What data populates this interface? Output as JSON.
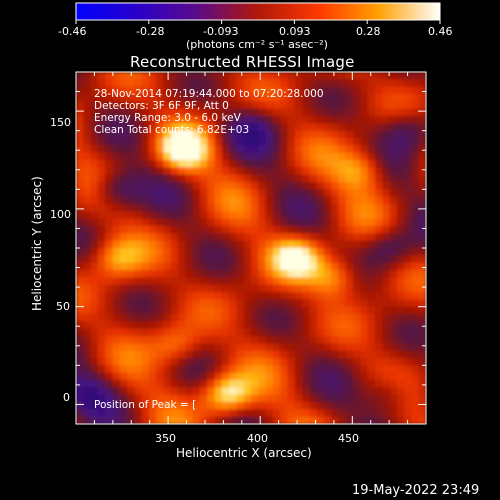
{
  "chart_data": {
    "type": "heatmap",
    "title": "Reconstructed RHESSI Image",
    "xlabel": "Heliocentric X (arcsec)",
    "ylabel": "Heliocentric Y (arcsec)",
    "xlim": [
      300,
      490
    ],
    "ylim": [
      -10,
      170
    ],
    "xticks": [
      350,
      400,
      450
    ],
    "yticks": [
      0,
      50,
      100,
      150
    ],
    "colorbar": {
      "label": "(photons cm⁻² s⁻¹ asec⁻²)",
      "min": -0.46,
      "max": 0.46,
      "ticks": [
        "-0.46",
        "-0.28",
        "-0.093",
        "0.093",
        "0.28",
        "0.46"
      ]
    },
    "annotations": [
      "28-Nov-2014 07:19:44.000 to 07:20:28.000",
      "Detectors: 3F 6F 9F, Att 0",
      "Energy Range: 3.0 - 6.0 keV",
      "Clean     Total counts: 6.82E+03"
    ],
    "peak_label": "Position of Peak = [",
    "bright_sources": [
      {
        "x": 358,
        "y": 130,
        "amp": 0.98
      },
      {
        "x": 420,
        "y": 75,
        "amp": 0.85
      },
      {
        "x": 440,
        "y": 65,
        "amp": 0.7
      },
      {
        "x": 382,
        "y": 5,
        "amp": 1.0
      },
      {
        "x": 455,
        "y": 120,
        "amp": 0.6
      },
      {
        "x": 322,
        "y": 75,
        "amp": 0.6
      },
      {
        "x": 355,
        "y": 30,
        "amp": 0.55
      }
    ],
    "dark_regions": [
      {
        "x": 322,
        "y": 110,
        "amp": -0.7
      },
      {
        "x": 395,
        "y": 140,
        "amp": -0.55
      },
      {
        "x": 470,
        "y": 80,
        "amp": -0.55
      },
      {
        "x": 480,
        "y": 140,
        "amp": -0.5
      },
      {
        "x": 305,
        "y": 5,
        "amp": -0.6
      },
      {
        "x": 470,
        "y": 5,
        "amp": -0.5
      }
    ],
    "grid": false
  },
  "footer": {
    "timestamp": "19-May-2022 23:49"
  }
}
